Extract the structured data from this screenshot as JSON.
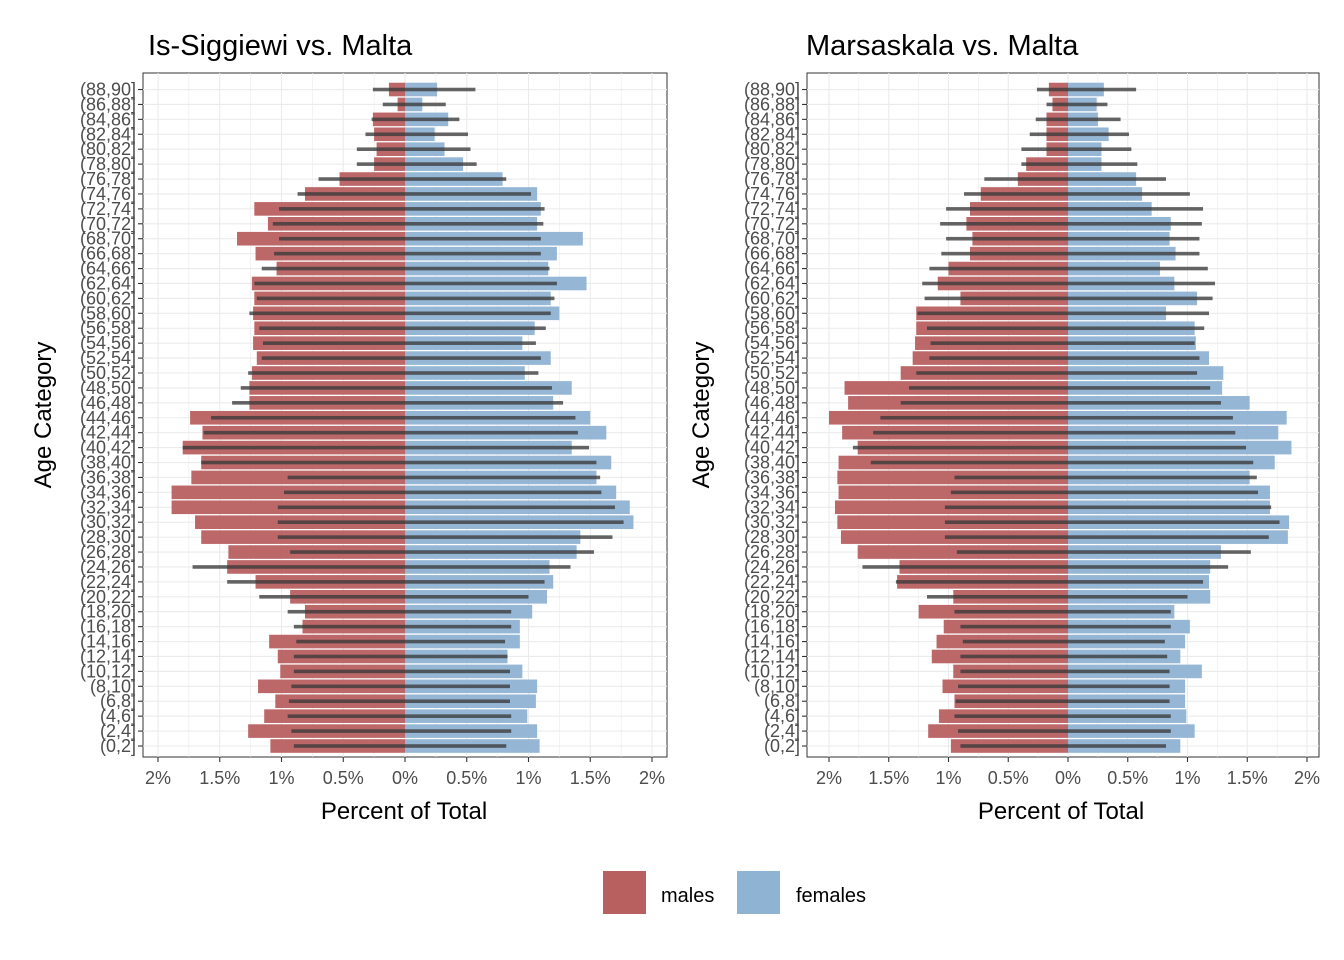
{
  "chart_data": [
    {
      "type": "bar",
      "orientation": "horizontal",
      "title": "Is-Siggiewi  vs. Malta",
      "xlabel": "Percent of Total",
      "ylabel": "Age Category",
      "xlim": [
        -2,
        2
      ],
      "x_ticks": [
        "2%",
        "1.5%",
        "1%",
        "0.5%",
        "0%",
        "0.5%",
        "1%",
        "1.5%",
        "2%"
      ],
      "grid": true,
      "categories": [
        "(0,2]",
        "(2,4]",
        "(4,6]",
        "(6,8]",
        "(8,10]",
        "(10,12]",
        "(12,14]",
        "(14,16]",
        "(16,18]",
        "(18,20]",
        "(20,22]",
        "(22,24]",
        "(24,26]",
        "(26,28]",
        "(28,30]",
        "(30,32]",
        "(32,34]",
        "(34,36]",
        "(36,38]",
        "(38,40]",
        "(40,42]",
        "(42,44]",
        "(44,46]",
        "(46,48]",
        "(48,50]",
        "(50,52]",
        "(52,54]",
        "(54,56]",
        "(56,58]",
        "(58,60]",
        "(60,62]",
        "(62,64]",
        "(64,66]",
        "(66,68]",
        "(68,70]",
        "(70,72]",
        "(72,74]",
        "(74,76]",
        "(76,78]",
        "(78,80]",
        "(80,82]",
        "(82,84]",
        "(84,86]",
        "(86,88]",
        "(88,90]"
      ],
      "series": [
        {
          "name": "males",
          "values": [
            1.09,
            1.27,
            1.14,
            1.05,
            1.19,
            1.01,
            1.03,
            1.1,
            0.83,
            0.81,
            0.93,
            1.21,
            1.44,
            1.43,
            1.65,
            1.7,
            1.89,
            1.89,
            1.73,
            1.65,
            1.8,
            1.64,
            1.74,
            1.26,
            1.26,
            1.24,
            1.2,
            1.23,
            1.22,
            1.23,
            1.22,
            1.24,
            1.04,
            1.21,
            1.36,
            1.11,
            1.22,
            0.81,
            0.53,
            0.25,
            0.23,
            0.25,
            0.26,
            0.06,
            0.13
          ]
        },
        {
          "name": "females",
          "values": [
            1.09,
            1.07,
            0.99,
            1.06,
            1.07,
            0.95,
            0.83,
            0.93,
            0.93,
            1.03,
            1.15,
            1.2,
            1.17,
            1.39,
            1.42,
            1.85,
            1.82,
            1.71,
            1.55,
            1.67,
            1.35,
            1.63,
            1.5,
            1.2,
            1.35,
            0.97,
            1.18,
            0.95,
            1.05,
            1.25,
            1.18,
            1.47,
            1.16,
            1.23,
            1.44,
            1.07,
            1.1,
            1.07,
            0.79,
            0.47,
            0.32,
            0.24,
            0.35,
            0.14,
            0.26
          ]
        },
        {
          "name": "Malta males",
          "values": [
            0.9,
            0.92,
            0.95,
            0.94,
            0.92,
            0.9,
            0.9,
            0.88,
            0.9,
            0.95,
            1.18,
            1.44,
            1.72,
            0.93,
            1.03,
            1.03,
            1.03,
            0.98,
            0.95,
            1.65,
            1.8,
            1.63,
            1.57,
            1.4,
            1.33,
            1.27,
            1.16,
            1.15,
            1.18,
            1.26,
            1.2,
            1.22,
            1.16,
            1.06,
            1.02,
            1.07,
            1.02,
            0.87,
            0.7,
            0.39,
            0.39,
            0.32,
            0.27,
            0.18,
            0.26
          ]
        },
        {
          "name": "Malta females",
          "values": [
            0.82,
            0.86,
            0.86,
            0.85,
            0.85,
            0.85,
            0.83,
            0.81,
            0.86,
            0.86,
            1.0,
            1.13,
            1.34,
            1.53,
            1.68,
            1.77,
            1.7,
            1.59,
            1.58,
            1.55,
            1.49,
            1.4,
            1.38,
            1.28,
            1.19,
            1.08,
            1.1,
            1.06,
            1.14,
            1.18,
            1.21,
            1.23,
            1.17,
            1.1,
            1.1,
            1.12,
            1.13,
            1.02,
            0.82,
            0.58,
            0.53,
            0.51,
            0.44,
            0.33,
            0.57
          ]
        }
      ]
    },
    {
      "type": "bar",
      "orientation": "horizontal",
      "title": "Marsaskala  vs. Malta",
      "xlabel": "Percent of Total",
      "ylabel": "Age Category",
      "xlim": [
        -2,
        2
      ],
      "x_ticks": [
        "2%",
        "1.5%",
        "1%",
        "0.5%",
        "0%",
        "0.5%",
        "1%",
        "1.5%",
        "2%"
      ],
      "grid": true,
      "categories": [
        "(0,2]",
        "(2,4]",
        "(4,6]",
        "(6,8]",
        "(8,10]",
        "(10,12]",
        "(12,14]",
        "(14,16]",
        "(16,18]",
        "(18,20]",
        "(20,22]",
        "(22,24]",
        "(24,26]",
        "(26,28]",
        "(28,30]",
        "(30,32]",
        "(32,34]",
        "(34,36]",
        "(36,38]",
        "(38,40]",
        "(40,42]",
        "(42,44]",
        "(44,46]",
        "(46,48]",
        "(48,50]",
        "(50,52]",
        "(52,54]",
        "(54,56]",
        "(56,58]",
        "(58,60]",
        "(60,62]",
        "(62,64]",
        "(64,66]",
        "(66,68]",
        "(68,70]",
        "(70,72]",
        "(72,74]",
        "(74,76]",
        "(76,78]",
        "(78,80]",
        "(80,82]",
        "(82,84]",
        "(84,86]",
        "(86,88]",
        "(88,90]"
      ],
      "series": [
        {
          "name": "males",
          "values": [
            0.98,
            1.17,
            1.08,
            0.95,
            1.05,
            0.96,
            1.14,
            1.1,
            1.04,
            1.25,
            0.96,
            1.43,
            1.41,
            1.76,
            1.9,
            1.93,
            1.95,
            1.92,
            1.93,
            1.92,
            1.76,
            1.89,
            2.0,
            1.84,
            1.87,
            1.4,
            1.3,
            1.28,
            1.27,
            1.27,
            0.9,
            1.09,
            1.0,
            0.82,
            0.8,
            0.85,
            0.82,
            0.73,
            0.42,
            0.35,
            0.18,
            0.18,
            0.18,
            0.13,
            0.16
          ]
        },
        {
          "name": "females",
          "values": [
            0.94,
            1.06,
            0.99,
            0.98,
            0.98,
            1.12,
            0.94,
            0.98,
            1.02,
            0.89,
            1.19,
            1.18,
            1.19,
            1.28,
            1.84,
            1.85,
            1.69,
            1.69,
            1.52,
            1.73,
            1.87,
            1.76,
            1.83,
            1.52,
            1.29,
            1.3,
            1.18,
            1.07,
            1.06,
            0.82,
            1.08,
            0.89,
            0.77,
            0.9,
            0.85,
            0.86,
            0.7,
            0.62,
            0.57,
            0.28,
            0.28,
            0.34,
            0.25,
            0.24,
            0.3
          ]
        },
        {
          "name": "Malta males",
          "values": [
            0.9,
            0.92,
            0.95,
            0.94,
            0.92,
            0.9,
            0.9,
            0.88,
            0.9,
            0.95,
            1.18,
            1.44,
            1.72,
            0.93,
            1.03,
            1.03,
            1.03,
            0.98,
            0.95,
            1.65,
            1.8,
            1.63,
            1.57,
            1.4,
            1.33,
            1.27,
            1.16,
            1.15,
            1.18,
            1.26,
            1.2,
            1.22,
            1.16,
            1.06,
            1.02,
            1.07,
            1.02,
            0.87,
            0.7,
            0.39,
            0.39,
            0.32,
            0.27,
            0.18,
            0.26
          ]
        },
        {
          "name": "Malta females",
          "values": [
            0.82,
            0.86,
            0.86,
            0.85,
            0.85,
            0.85,
            0.83,
            0.81,
            0.86,
            0.86,
            1.0,
            1.13,
            1.34,
            1.53,
            1.68,
            1.77,
            1.7,
            1.59,
            1.58,
            1.55,
            1.49,
            1.4,
            1.38,
            1.28,
            1.19,
            1.08,
            1.1,
            1.06,
            1.14,
            1.18,
            1.21,
            1.23,
            1.17,
            1.1,
            1.1,
            1.12,
            1.13,
            1.02,
            0.82,
            0.58,
            0.53,
            0.51,
            0.44,
            0.33,
            0.57
          ]
        }
      ]
    }
  ],
  "legend": {
    "position": "bottom",
    "items": [
      {
        "label": "males",
        "color": "#b85f60"
      },
      {
        "label": "females",
        "color": "#8fb3d3"
      }
    ]
  },
  "colors": {
    "males": "#b85f60",
    "females": "#8fb3d3",
    "malta_overlay": "#3a3a3a",
    "grid": "#ebebeb",
    "axis_text": "#4d4d4d"
  }
}
